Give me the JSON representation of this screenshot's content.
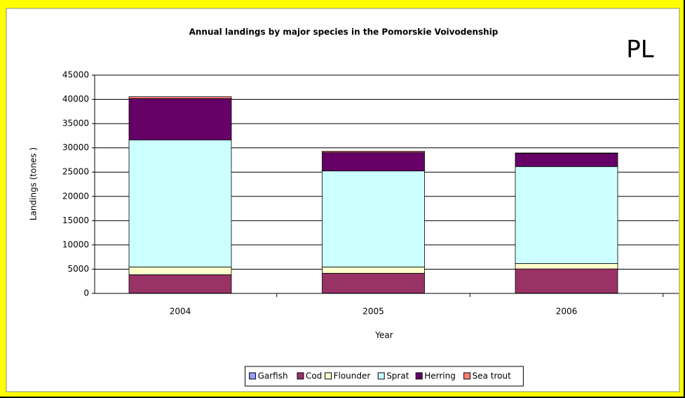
{
  "chart_data": {
    "type": "stacked_bar",
    "title": "Annual landings by major species in the Pomorskie Voivodenship",
    "annotation": "PL",
    "xlabel": "Year",
    "ylabel": "Landings (tones )",
    "categories": [
      "2004",
      "2005",
      "2006"
    ],
    "series": [
      {
        "name": "Garfish",
        "color": "#9999ff",
        "values": [
          50,
          50,
          50
        ]
      },
      {
        "name": "Cod",
        "color": "#993366",
        "values": [
          3800,
          4100,
          5000
        ]
      },
      {
        "name": "Flounder",
        "color": "#ffffcc",
        "values": [
          1600,
          1300,
          1100
        ]
      },
      {
        "name": "Sprat",
        "color": "#ccffff",
        "values": [
          26200,
          19800,
          20000
        ]
      },
      {
        "name": "Herring",
        "color": "#660066",
        "values": [
          8500,
          3800,
          2700
        ]
      },
      {
        "name": "Sea trout",
        "color": "#ff8080",
        "values": [
          400,
          250,
          100
        ]
      }
    ],
    "ylim": [
      0,
      45000
    ],
    "yticks": [
      0,
      5000,
      10000,
      15000,
      20000,
      25000,
      30000,
      35000,
      40000,
      45000
    ],
    "grid": true,
    "legend": "bottom"
  }
}
